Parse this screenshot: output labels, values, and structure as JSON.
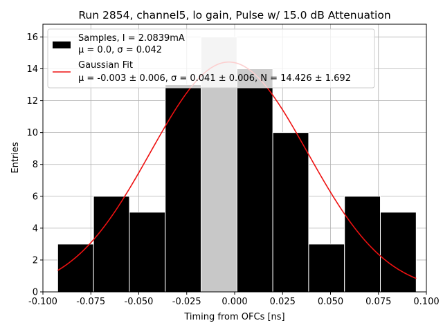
{
  "chart_data": {
    "type": "bar",
    "title": "Run 2854, channel5, lo gain, Pulse w/ 15.0 dB Attenuation",
    "xlabel": "Timing from OFCs [ns]",
    "ylabel": "Entries",
    "xlim": [
      -0.1,
      0.1
    ],
    "ylim": [
      0,
      16.8
    ],
    "xticks": [
      "-0.100",
      "-0.075",
      "-0.050",
      "-0.025",
      "0.000",
      "0.025",
      "0.050",
      "0.075",
      "0.100"
    ],
    "xtick_values": [
      -0.1,
      -0.075,
      -0.05,
      -0.025,
      0.0,
      0.025,
      0.05,
      0.075,
      0.1
    ],
    "yticks": [
      "0",
      "2",
      "4",
      "6",
      "8",
      "10",
      "12",
      "14",
      "16"
    ],
    "ytick_values": [
      0,
      2,
      4,
      6,
      8,
      10,
      12,
      14,
      16
    ],
    "grid": true,
    "legend_position": "top-left",
    "histogram": {
      "name": "Samples, I = 2.0839mA",
      "stats": "μ = 0.0, σ = 0.042",
      "bin_edges": [
        -0.0923,
        -0.0736,
        -0.0549,
        -0.0362,
        -0.0175,
        0.0012,
        0.0199,
        0.0386,
        0.0573,
        0.076,
        0.0947
      ],
      "counts": [
        3,
        6,
        5,
        13,
        16,
        14,
        10,
        3,
        6,
        5
      ],
      "color": "#000000",
      "highlight_color": "#c8c8c8"
    },
    "fit": {
      "name": "Gaussian Fit",
      "stats": "μ = -0.003 ± 0.006, σ = 0.041 ± 0.006, N = 14.426 ± 1.692",
      "mu": -0.003,
      "sigma": 0.041,
      "N": 14.426,
      "x_range": [
        -0.0923,
        0.0947
      ],
      "color": "#ee1111"
    }
  }
}
